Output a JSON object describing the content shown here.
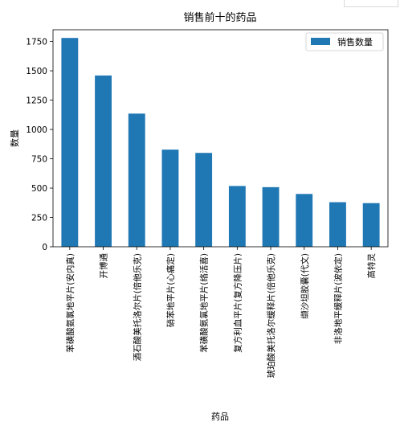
{
  "chart_data": {
    "type": "bar",
    "title": "销售前十的药品",
    "xlabel": "药品",
    "ylabel": "数量",
    "categories": [
      "苯磺酸氨氯地平片(安内真)",
      "开博通",
      "酒石酸美托洛尔片(倍他乐克)",
      "硝苯地平片(心痛定)",
      "苯磺酸氨氯地平片(络活喜)",
      "复方利血平片(复方降压片)",
      "琥珀酸美托洛尔缓释片(倍他乐克)",
      "缬沙坦胶囊(代文)",
      "非洛地平缓释片(波依定)",
      "高特灵"
    ],
    "series": [
      {
        "name": "销售数量",
        "values": [
          1780,
          1460,
          1135,
          828,
          800,
          518,
          508,
          450,
          380,
          372
        ],
        "color": "#1f77b4"
      }
    ],
    "ylim": [
      0,
      1850
    ],
    "yticks": [
      0,
      250,
      500,
      750,
      1000,
      1250,
      1500,
      1750
    ],
    "legend_position": "top-right",
    "grid": false
  }
}
